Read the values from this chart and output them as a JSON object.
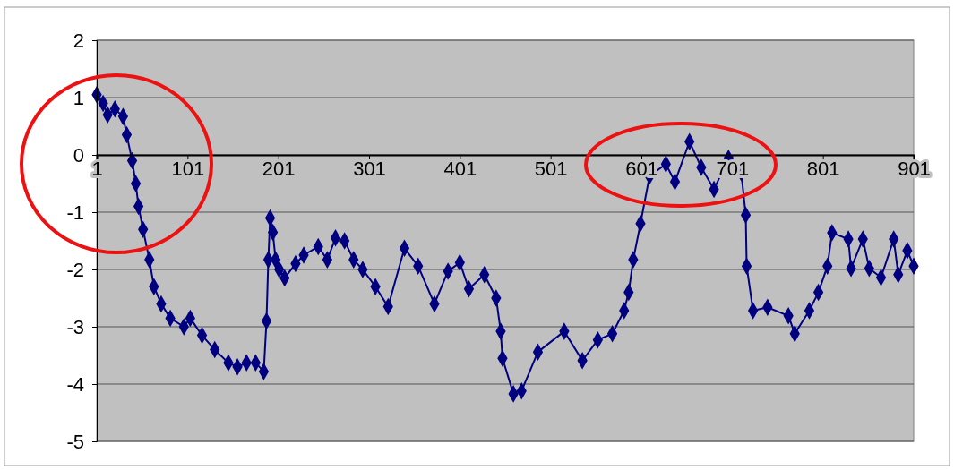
{
  "chart_data": {
    "type": "line",
    "marker": "diamond",
    "grid": "y",
    "xlim": [
      1,
      901
    ],
    "xticks": [
      1,
      101,
      201,
      301,
      401,
      501,
      601,
      701,
      801,
      901
    ],
    "ylim": [
      -5,
      2
    ],
    "yticks": [
      -5,
      -4,
      -3,
      -2,
      -1,
      0,
      1,
      2
    ],
    "series": [
      {
        "color": "#000080",
        "x": [
          1,
          8,
          13,
          21,
          30,
          34,
          40,
          44,
          47,
          52,
          59,
          64,
          72,
          82,
          97,
          104,
          117,
          131,
          146,
          156,
          166,
          176,
          185,
          188,
          190,
          192,
          195,
          198,
          202,
          208,
          220,
          229,
          245,
          255,
          264,
          274,
          284,
          294,
          308,
          322,
          340,
          355,
          373,
          388,
          401,
          411,
          428,
          441,
          446,
          448,
          460,
          469,
          487,
          516,
          536,
          553,
          569,
          582,
          587,
          592,
          600,
          610,
          628,
          638,
          654,
          667,
          681,
          697,
          711,
          716,
          717,
          724,
          740,
          763,
          770,
          786,
          796,
          806,
          811,
          829,
          832,
          845,
          852,
          865,
          879,
          884,
          894,
          901
        ],
        "values": [
          1.05,
          0.9,
          0.7,
          0.8,
          0.67,
          0.35,
          -0.1,
          -0.5,
          -0.9,
          -1.3,
          -1.83,
          -2.3,
          -2.6,
          -2.85,
          -3.0,
          -2.85,
          -3.15,
          -3.4,
          -3.63,
          -3.7,
          -3.63,
          -3.63,
          -3.78,
          -2.9,
          -1.83,
          -1.1,
          -1.35,
          -1.83,
          -2.0,
          -2.15,
          -1.9,
          -1.75,
          -1.6,
          -1.83,
          -1.45,
          -1.5,
          -1.83,
          -2.0,
          -2.3,
          -2.65,
          -1.63,
          -1.94,
          -2.6,
          -2.03,
          -1.88,
          -2.34,
          -2.09,
          -2.5,
          -3.08,
          -3.55,
          -4.17,
          -4.12,
          -3.44,
          -3.08,
          -3.59,
          -3.23,
          -3.12,
          -2.72,
          -2.4,
          -1.83,
          -1.2,
          -0.37,
          -0.16,
          -0.47,
          0.23,
          -0.22,
          -0.6,
          -0.06,
          -0.31,
          -1.05,
          -1.94,
          -2.72,
          -2.66,
          -2.81,
          -3.12,
          -2.72,
          -2.4,
          -1.94,
          -1.36,
          -1.47,
          -1.98,
          -1.47,
          -1.98,
          -2.14,
          -1.47,
          -2.09,
          -1.67,
          -1.94
        ]
      }
    ]
  }
}
